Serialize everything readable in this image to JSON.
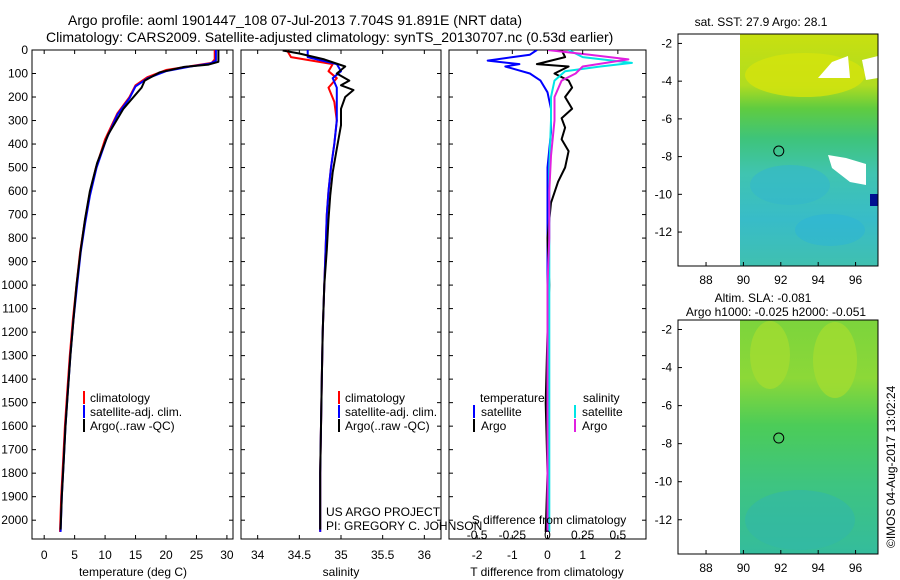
{
  "header": {
    "title_line1": "Argo profile: aoml 1901447_108 07-Jul-2013 7.704S 91.891E (NRT data)",
    "title_line2": "Climatology: CARS2009. Satellite-adjusted climatology: synTS_20130707.nc (0.53d earlier)"
  },
  "colors": {
    "climatology": "#ff0000",
    "satellite": "#0000ff",
    "argo": "#000000",
    "satellite_salinity": "#00e5e5",
    "argo_salinity": "#e020e0"
  },
  "chart_data": [
    {
      "type": "line",
      "name": "temperature-profile",
      "xlabel": "temperature (deg C)",
      "ylabel": "",
      "xlim": [
        -2,
        31
      ],
      "ylim": [
        2080,
        0
      ],
      "xticks": [
        0,
        5,
        10,
        15,
        20,
        25,
        30
      ],
      "yticks": [
        0,
        100,
        200,
        300,
        400,
        500,
        600,
        700,
        800,
        900,
        1000,
        1100,
        1200,
        1300,
        1400,
        1500,
        1600,
        1700,
        1800,
        1900,
        2000
      ],
      "legend": [
        "climatology",
        "satellite-adj. clim.",
        "Argo(..raw -QC)"
      ],
      "series": [
        {
          "name": "climatology",
          "color": "#ff0000",
          "points": [
            [
              28,
              0
            ],
            [
              28,
              40
            ],
            [
              27.5,
              55
            ],
            [
              25,
              65
            ],
            [
              20,
              85
            ],
            [
              17,
              115
            ],
            [
              15,
              150
            ],
            [
              14,
              200
            ],
            [
              12,
              270
            ],
            [
              10,
              380
            ],
            [
              8.5,
              500
            ],
            [
              7.4,
              620
            ],
            [
              6.6,
              740
            ],
            [
              5.9,
              860
            ],
            [
              5.3,
              1000
            ],
            [
              4.7,
              1150
            ],
            [
              4.2,
              1300
            ],
            [
              3.8,
              1450
            ],
            [
              3.4,
              1600
            ],
            [
              3.1,
              1750
            ],
            [
              2.8,
              1900
            ],
            [
              2.6,
              2050
            ]
          ]
        },
        {
          "name": "satellite-adj. clim.",
          "color": "#0000ff",
          "points": [
            [
              28.2,
              0
            ],
            [
              28.2,
              45
            ],
            [
              27.2,
              58
            ],
            [
              24,
              70
            ],
            [
              20,
              90
            ],
            [
              17,
              120
            ],
            [
              15,
              155
            ],
            [
              14,
              205
            ],
            [
              12,
              275
            ],
            [
              10.2,
              380
            ],
            [
              8.6,
              500
            ],
            [
              7.5,
              620
            ],
            [
              6.7,
              740
            ],
            [
              6,
              860
            ],
            [
              5.4,
              1000
            ],
            [
              4.8,
              1150
            ],
            [
              4.3,
              1300
            ],
            [
              3.9,
              1450
            ],
            [
              3.5,
              1600
            ],
            [
              3.2,
              1750
            ],
            [
              2.9,
              1900
            ],
            [
              2.7,
              2050
            ]
          ]
        },
        {
          "name": "Argo(..raw -QC)",
          "color": "#000000",
          "points": [
            [
              28.6,
              2
            ],
            [
              28.6,
              50
            ],
            [
              27,
              62
            ],
            [
              23,
              72
            ],
            [
              19,
              95
            ],
            [
              16.5,
              130
            ],
            [
              16,
              160
            ],
            [
              15,
              190
            ],
            [
              13,
              250
            ],
            [
              10.5,
              360
            ],
            [
              8.7,
              480
            ],
            [
              7.5,
              600
            ],
            [
              6.7,
              720
            ],
            [
              6,
              850
            ],
            [
              5.3,
              1000
            ],
            [
              4.8,
              1150
            ],
            [
              4.3,
              1300
            ],
            [
              3.9,
              1450
            ],
            [
              3.5,
              1600
            ],
            [
              3.2,
              1750
            ],
            [
              2.9,
              1900
            ],
            [
              2.7,
              2040
            ]
          ]
        }
      ]
    },
    {
      "type": "line",
      "name": "salinity-profile",
      "xlabel": "salinity",
      "xlim": [
        33.8,
        36.2
      ],
      "ylim": [
        2080,
        0
      ],
      "xticks": [
        34,
        34.5,
        35,
        35.5,
        36
      ],
      "xticklabels": [
        "34",
        "34.5",
        "35",
        "35.5",
        "36"
      ],
      "legend": [
        "climatology",
        "satellite-adj. clim.",
        "Argo(..raw -QC)"
      ],
      "annotations": [
        "US ARGO PROJECT",
        "PI: GREGORY C. JOHNSON"
      ],
      "series": [
        {
          "name": "climatology",
          "color": "#ff0000",
          "points": [
            [
              34.35,
              0
            ],
            [
              34.4,
              30
            ],
            [
              34.9,
              60
            ],
            [
              34.85,
              90
            ],
            [
              34.95,
              120
            ],
            [
              34.85,
              160
            ],
            [
              34.92,
              220
            ],
            [
              34.95,
              300
            ],
            [
              34.92,
              400
            ],
            [
              34.88,
              500
            ],
            [
              34.85,
              600
            ],
            [
              34.83,
              700
            ],
            [
              34.82,
              800
            ],
            [
              34.8,
              1000
            ],
            [
              34.78,
              1200
            ],
            [
              34.77,
              1400
            ],
            [
              34.76,
              1600
            ],
            [
              34.75,
              1800
            ],
            [
              34.75,
              2050
            ]
          ]
        },
        {
          "name": "satellite-adj. clim.",
          "color": "#0000ff",
          "points": [
            [
              34.6,
              0
            ],
            [
              34.6,
              30
            ],
            [
              34.95,
              60
            ],
            [
              35,
              90
            ],
            [
              34.9,
              120
            ],
            [
              34.95,
              160
            ],
            [
              34.95,
              220
            ],
            [
              34.95,
              300
            ],
            [
              34.92,
              400
            ],
            [
              34.88,
              500
            ],
            [
              34.85,
              600
            ],
            [
              34.83,
              700
            ],
            [
              34.82,
              800
            ],
            [
              34.8,
              1000
            ],
            [
              34.78,
              1200
            ],
            [
              34.77,
              1400
            ],
            [
              34.76,
              1600
            ],
            [
              34.75,
              1800
            ],
            [
              34.75,
              2050
            ]
          ]
        },
        {
          "name": "Argo(..raw -QC)",
          "color": "#000000",
          "points": [
            [
              34.3,
              2
            ],
            [
              34.5,
              15
            ],
            [
              34.8,
              40
            ],
            [
              35.05,
              70
            ],
            [
              34.95,
              100
            ],
            [
              35.1,
              130
            ],
            [
              35,
              150
            ],
            [
              35.15,
              170
            ],
            [
              35.05,
              200
            ],
            [
              35,
              250
            ],
            [
              35,
              320
            ],
            [
              34.95,
              420
            ],
            [
              34.9,
              520
            ],
            [
              34.87,
              620
            ],
            [
              34.85,
              720
            ],
            [
              34.83,
              850
            ],
            [
              34.8,
              1000
            ],
            [
              34.78,
              1200
            ],
            [
              34.77,
              1400
            ],
            [
              34.76,
              1600
            ],
            [
              34.75,
              1800
            ],
            [
              34.75,
              2040
            ]
          ]
        }
      ]
    },
    {
      "type": "line",
      "name": "difference-profile",
      "xlabel": "T difference from climatology",
      "top_xlabel": "S difference from climatology",
      "xlim": [
        -2.8,
        2.8
      ],
      "ylim": [
        2080,
        0
      ],
      "xticks": [
        -2,
        -1,
        0,
        1,
        2
      ],
      "top_xticks": [
        -0.5,
        -0.25,
        0,
        0.25,
        0.5
      ],
      "top_xticklabels": [
        "-0.5",
        "-0.25",
        "0",
        "0.25",
        "0.5"
      ],
      "legend_temperature": "temperature",
      "legend_salinity": "salinity",
      "legend_satellite": "satellite",
      "legend_argo": "Argo",
      "series": [
        {
          "name": "T satellite",
          "color": "#0000ff",
          "points": [
            [
              -0.3,
              0
            ],
            [
              -0.5,
              20
            ],
            [
              -1.7,
              45
            ],
            [
              -0.8,
              60
            ],
            [
              -1.2,
              70
            ],
            [
              -0.5,
              100
            ],
            [
              -0.2,
              130
            ],
            [
              0,
              180
            ],
            [
              0.1,
              250
            ],
            [
              0.1,
              350
            ],
            [
              0,
              500
            ],
            [
              0,
              700
            ],
            [
              0,
              1000
            ],
            [
              0,
              1500
            ],
            [
              0,
              2050
            ]
          ]
        },
        {
          "name": "T Argo",
          "color": "#000000",
          "points": [
            [
              0.4,
              0
            ],
            [
              0.5,
              30
            ],
            [
              -0.3,
              60
            ],
            [
              0.6,
              70
            ],
            [
              0.2,
              100
            ],
            [
              0.6,
              130
            ],
            [
              0.7,
              160
            ],
            [
              0.5,
              200
            ],
            [
              0.7,
              250
            ],
            [
              0.4,
              290
            ],
            [
              0.5,
              330
            ],
            [
              0.4,
              380
            ],
            [
              0.6,
              430
            ],
            [
              0.5,
              500
            ],
            [
              0.3,
              560
            ],
            [
              0.1,
              650
            ],
            [
              0,
              800
            ],
            [
              0.05,
              1000
            ],
            [
              0,
              1200
            ],
            [
              -0.05,
              1500
            ],
            [
              0,
              1800
            ],
            [
              -0.05,
              2050
            ]
          ]
        },
        {
          "name": "S satellite",
          "color": "#00e5e5",
          "points": [
            [
              0.6,
              0
            ],
            [
              1,
              30
            ],
            [
              2.4,
              55
            ],
            [
              1.5,
              70
            ],
            [
              0.5,
              90
            ],
            [
              0.2,
              130
            ],
            [
              0.1,
              200
            ],
            [
              0.1,
              300
            ],
            [
              0.05,
              500
            ],
            [
              0.05,
              800
            ],
            [
              0.05,
              1200
            ],
            [
              0.05,
              1600
            ],
            [
              0.05,
              2050
            ]
          ]
        },
        {
          "name": "S Argo",
          "color": "#e020e0",
          "points": [
            [
              0,
              0
            ],
            [
              1.2,
              20
            ],
            [
              2.3,
              40
            ],
            [
              1,
              70
            ],
            [
              0.8,
              100
            ],
            [
              0.4,
              130
            ],
            [
              0.2,
              200
            ],
            [
              0.2,
              300
            ],
            [
              0.1,
              450
            ],
            [
              0.05,
              600
            ],
            [
              0.05,
              800
            ],
            [
              0,
              1000
            ],
            [
              0,
              1200
            ],
            [
              0,
              1400
            ],
            [
              0,
              1600
            ],
            [
              0,
              2050
            ]
          ]
        }
      ]
    },
    {
      "type": "heatmap",
      "name": "sst-map",
      "title": "sat. SST: 27.9 Argo: 28.1",
      "xlim": [
        86.5,
        97.2
      ],
      "ylim": [
        -13.8,
        -1.5
      ],
      "xticks": [
        88,
        90,
        92,
        94,
        96
      ],
      "yticks": [
        -2,
        -4,
        -6,
        -8,
        -10,
        -12
      ],
      "marker": [
        91.891,
        -7.704
      ]
    },
    {
      "type": "heatmap",
      "name": "sla-map",
      "title_line1": "Altim. SLA: -0.081",
      "title_line2": "Argo h1000: -0.025 h2000: -0.051",
      "xlim": [
        86.5,
        97.2
      ],
      "ylim": [
        -13.8,
        -1.5
      ],
      "xticks": [
        88,
        90,
        92,
        94,
        96
      ],
      "yticks": [
        -2,
        -4,
        -6,
        -8,
        -10,
        -12
      ],
      "marker": [
        91.891,
        -7.704
      ]
    }
  ],
  "footer": {
    "stamp": "©IMOS 04-Aug-2017 13:02:24"
  }
}
